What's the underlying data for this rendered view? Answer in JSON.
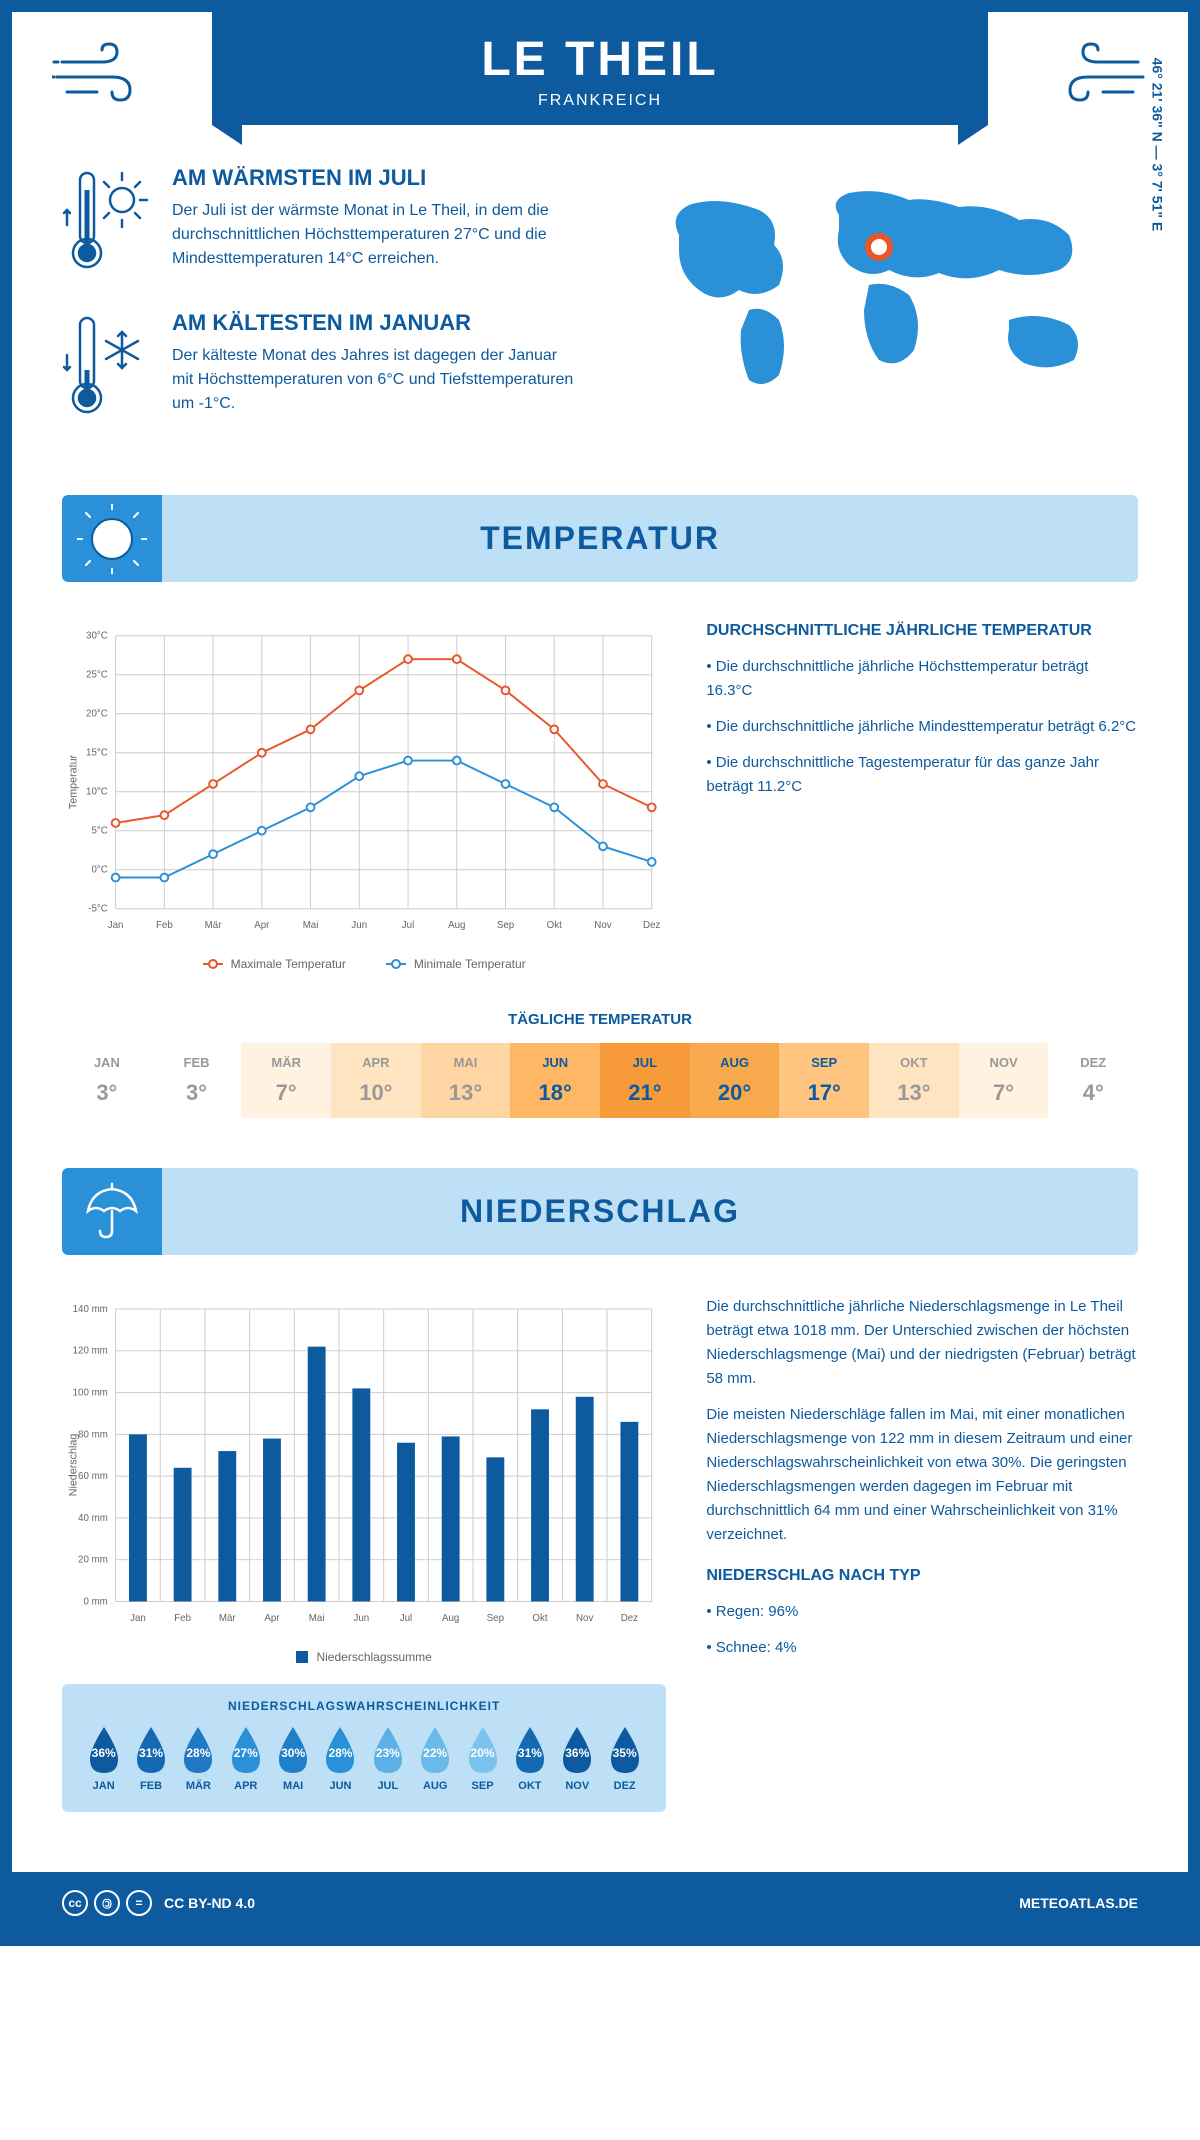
{
  "header": {
    "title": "LE THEIL",
    "subtitle": "FRANKREICH",
    "coords": "46° 21' 36\" N — 3° 7' 51\" E"
  },
  "facts": {
    "warm": {
      "title": "AM WÄRMSTEN IM JULI",
      "text": "Der Juli ist der wärmste Monat in Le Theil, in dem die durchschnittlichen Höchsttemperaturen 27°C und die Mindesttemperaturen 14°C erreichen."
    },
    "cold": {
      "title": "AM KÄLTESTEN IM JANUAR",
      "text": "Der kälteste Monat des Jahres ist dagegen der Januar mit Höchsttemperaturen von 6°C und Tiefsttemperaturen um -1°C."
    }
  },
  "temperature": {
    "section_title": "TEMPERATUR",
    "chart": {
      "months": [
        "Jan",
        "Feb",
        "Mär",
        "Apr",
        "Mai",
        "Jun",
        "Jul",
        "Aug",
        "Sep",
        "Okt",
        "Nov",
        "Dez"
      ],
      "max_series": [
        6,
        7,
        11,
        15,
        18,
        23,
        27,
        27,
        23,
        18,
        11,
        8
      ],
      "min_series": [
        -1,
        -1,
        2,
        5,
        8,
        12,
        14,
        14,
        11,
        8,
        3,
        1
      ],
      "max_color": "#e8562a",
      "min_color": "#2a91d8",
      "ylim": [
        -5,
        30
      ],
      "ytick_step": 5,
      "ylabel": "Temperatur",
      "legend_max": "Maximale Temperatur",
      "legend_min": "Minimale Temperatur",
      "grid_color": "#cccccc",
      "background": "#ffffff"
    },
    "summary": {
      "title": "DURCHSCHNITTLICHE JÄHRLICHE TEMPERATUR",
      "b1": "• Die durchschnittliche jährliche Höchsttemperatur beträgt 16.3°C",
      "b2": "• Die durchschnittliche jährliche Mindesttemperatur beträgt 6.2°C",
      "b3": "• Die durchschnittliche Tagestemperatur für das ganze Jahr beträgt 11.2°C"
    },
    "daily": {
      "title": "TÄGLICHE TEMPERATUR",
      "months": [
        "JAN",
        "FEB",
        "MÄR",
        "APR",
        "MAI",
        "JUN",
        "JUL",
        "AUG",
        "SEP",
        "OKT",
        "NOV",
        "DEZ"
      ],
      "values": [
        "3°",
        "3°",
        "7°",
        "10°",
        "13°",
        "18°",
        "21°",
        "20°",
        "17°",
        "13°",
        "7°",
        "4°"
      ],
      "bg_colors": [
        "#ffffff",
        "#ffffff",
        "#fff2e0",
        "#ffe4c2",
        "#ffd6a3",
        "#ffb665",
        "#f79b3a",
        "#f8a84d",
        "#ffc580",
        "#ffe4c2",
        "#fff2e0",
        "#ffffff"
      ],
      "text_colors": [
        "#999999",
        "#999999",
        "#999999",
        "#999999",
        "#999999",
        "#0d5a9e",
        "#0d5a9e",
        "#0d5a9e",
        "#0d5a9e",
        "#999999",
        "#999999",
        "#999999"
      ]
    }
  },
  "precipitation": {
    "section_title": "NIEDERSCHLAG",
    "chart": {
      "months": [
        "Jan",
        "Feb",
        "Mär",
        "Apr",
        "Mai",
        "Jun",
        "Jul",
        "Aug",
        "Sep",
        "Okt",
        "Nov",
        "Dez"
      ],
      "values": [
        80,
        64,
        72,
        78,
        122,
        102,
        76,
        79,
        69,
        92,
        98,
        86
      ],
      "bar_color": "#0d5a9e",
      "ylim": [
        0,
        140
      ],
      "ytick_step": 20,
      "ylabel": "Niederschlag",
      "legend": "Niederschlagssumme",
      "grid_color": "#cccccc"
    },
    "text": {
      "p1": "Die durchschnittliche jährliche Niederschlagsmenge in Le Theil beträgt etwa 1018 mm. Der Unterschied zwischen der höchsten Niederschlagsmenge (Mai) und der niedrigsten (Februar) beträgt 58 mm.",
      "p2": "Die meisten Niederschläge fallen im Mai, mit einer monatlichen Niederschlagsmenge von 122 mm in diesem Zeitraum und einer Niederschlagswahrscheinlichkeit von etwa 30%. Die geringsten Niederschlagsmengen werden dagegen im Februar mit durchschnittlich 64 mm und einer Wahrscheinlichkeit von 31% verzeichnet.",
      "type_title": "NIEDERSCHLAG NACH TYP",
      "type_rain": "• Regen: 96%",
      "type_snow": "• Schnee: 4%"
    },
    "probability": {
      "title": "NIEDERSCHLAGSWAHRSCHEINLICHKEIT",
      "months": [
        "JAN",
        "FEB",
        "MÄR",
        "APR",
        "MAI",
        "JUN",
        "JUL",
        "AUG",
        "SEP",
        "OKT",
        "NOV",
        "DEZ"
      ],
      "pct": [
        "36%",
        "31%",
        "28%",
        "27%",
        "30%",
        "28%",
        "23%",
        "22%",
        "20%",
        "31%",
        "36%",
        "35%"
      ],
      "colors": [
        "#0d5a9e",
        "#1569b3",
        "#2178c5",
        "#2a91d8",
        "#1f7fc9",
        "#2a91d8",
        "#5db0e5",
        "#6bb9e8",
        "#7bc3ec",
        "#1569b3",
        "#0d5a9e",
        "#0d5a9e"
      ]
    }
  },
  "footer": {
    "license": "CC BY-ND 4.0",
    "site": "METEOATLAS.DE"
  },
  "colors": {
    "primary": "#0d5a9e",
    "light_blue": "#bde0f7",
    "accent_blue": "#2a91d8"
  }
}
